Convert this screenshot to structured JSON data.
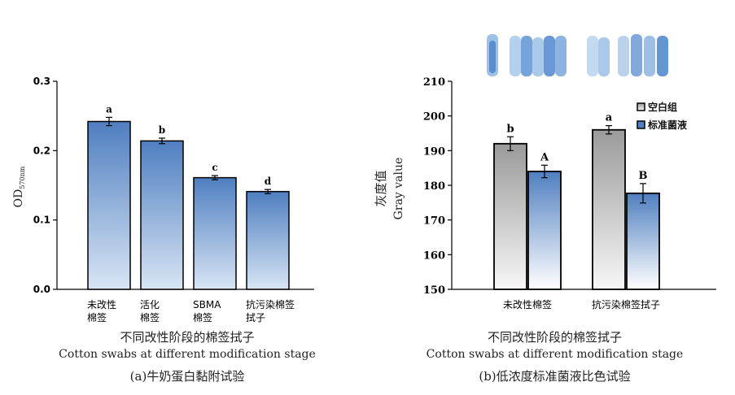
{
  "chart_data": [
    {
      "type": "bar",
      "ylabel": "OD",
      "ylabel_sub": "570nm",
      "ylim": [
        0.0,
        0.3
      ],
      "yticks": [
        "0.0",
        "0.1",
        "0.2",
        "0.3"
      ],
      "categories": [
        {
          "line1": "未改性",
          "line2": "棉签"
        },
        {
          "line1": "活化",
          "line2": "棉签"
        },
        {
          "line1": "SBMA",
          "line2": "棉签"
        },
        {
          "line1": "抗污染棉签",
          "line2": "拭子"
        }
      ],
      "values": [
        0.242,
        0.214,
        0.161,
        0.141
      ],
      "errors": [
        0.006,
        0.004,
        0.003,
        0.003
      ],
      "letters": [
        "a",
        "b",
        "c",
        "d"
      ],
      "colors": {
        "top": "#4f7fc0",
        "bottom": "#d8e5f5"
      },
      "xlabel_cn": "不同改性阶段的棉签拭子",
      "xlabel_en": "Cotton swabs at different modification stage",
      "caption": "(a)牛奶蛋白黏附试验"
    },
    {
      "type": "bar",
      "ylabel_cn": "灰度值",
      "ylabel_en": "Gray value",
      "ylim": [
        150,
        210
      ],
      "yticks": [
        "150",
        "160",
        "170",
        "180",
        "190",
        "200",
        "210"
      ],
      "categories": [
        "未改性棉签",
        "抗污染棉签拭子"
      ],
      "series": [
        {
          "name": "空白组",
          "values": [
            192,
            196
          ],
          "errors": [
            2.0,
            1.2
          ],
          "letters": [
            "b",
            "a"
          ],
          "color_top": "#9a9a9a",
          "color_bottom": "#f7f7f7"
        },
        {
          "name": "标准菌液",
          "values": [
            184,
            177.7
          ],
          "errors": [
            1.8,
            2.8
          ],
          "letters": [
            "A",
            "B"
          ],
          "color_top": "#4f7fc0",
          "color_bottom": "#ffffff"
        }
      ],
      "legend_position": "top-right",
      "xlabel_cn": "不同改性阶段的棉签拭子",
      "xlabel_en": "Cotton swabs at different modification stage",
      "caption": "(b)低浓度标准菌液比色试验"
    }
  ]
}
